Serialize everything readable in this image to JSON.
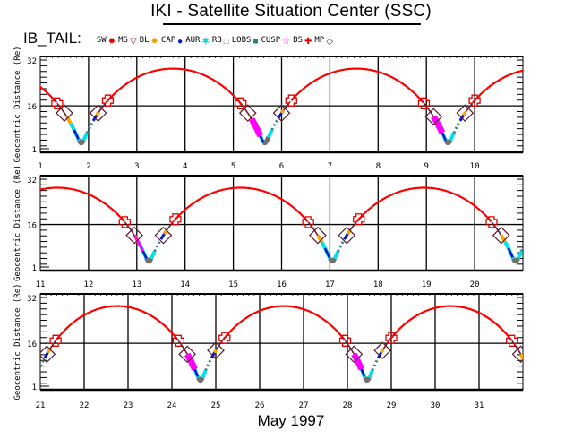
{
  "title": "IKI - Satellite Situation Center (SSC)",
  "legend": {
    "satellite": "IB_TAIL:",
    "items": [
      {
        "label": "SW",
        "glyph": "✹",
        "color": "#e00000",
        "icon": "sw-sun-icon"
      },
      {
        "label": "MS",
        "glyph": "▽",
        "color": "#6b1c2e",
        "icon": "ms-triangle-icon"
      },
      {
        "label": "BL",
        "glyph": "✹",
        "color": "#f0a000",
        "icon": "bl-sun-icon"
      },
      {
        "label": "CAP",
        "glyph": "●",
        "color": "#0018c8",
        "icon": "cap-dot-icon"
      },
      {
        "label": "AUR",
        "glyph": "✱",
        "color": "#00d8e0",
        "icon": "aur-star-icon"
      },
      {
        "label": "RB",
        "glyph": "□",
        "color": "#707070",
        "icon": "rb-square-icon"
      },
      {
        "label": "LOBS",
        "glyph": "■",
        "color": "#2a8080",
        "icon": "lobs-square-icon"
      },
      {
        "label": "CUSP",
        "glyph": "☆",
        "color": "#ff00ff",
        "icon": "cusp-star-icon"
      },
      {
        "label": "BS",
        "glyph": "✚",
        "color": "#e00000",
        "icon": "bs-cross-icon"
      },
      {
        "label": "MP",
        "glyph": "◇",
        "color": "#5a1a2a",
        "icon": "mp-diamond-icon"
      }
    ]
  },
  "colors": {
    "track": "#ff0000",
    "bl": "#6b1c2e",
    "cap": "#ffa500",
    "aur": "#0018c8",
    "rb": "#00e0e8",
    "lobs": "#707070",
    "cusp_teal": "#2a8080",
    "cusp_mag": "#ff00ff",
    "bs": "#e00000",
    "mp": "#5a1a2a",
    "axis": "#000000"
  },
  "chart_data": {
    "type": "line",
    "title": "IKI - Satellite Situation Center (SSC)",
    "satellite": "IB_TAIL",
    "xlabel": "May   1997",
    "ylabel": "Geocentric Distance (Re)",
    "ylim": [
      1,
      32
    ],
    "yticks": [
      1,
      16,
      32
    ],
    "grid": true,
    "orbit": {
      "period_days": 3.8,
      "apogee_re": 29,
      "perigee_re": 3,
      "first_perigee_day": 1.85
    },
    "panels": [
      {
        "xlim": [
          1,
          11
        ],
        "xticks": [
          "1",
          "2",
          "3",
          "4",
          "5",
          "6",
          "7",
          "8",
          "9",
          "10"
        ],
        "perigees": [
          1.85,
          5.68,
          9.45
        ],
        "bs_crossings": [
          1.35,
          2.4,
          5.15,
          6.2,
          8.95,
          10.0
        ],
        "mp_crossings": [
          1.5,
          2.2,
          5.3,
          6.0,
          9.15,
          9.8
        ]
      },
      {
        "xlim": [
          11,
          21
        ],
        "xticks": [
          "11",
          "12",
          "13",
          "14",
          "15",
          "16",
          "17",
          "18",
          "19",
          "20"
        ],
        "perigees": [
          13.25,
          17.05,
          20.85
        ],
        "bs_crossings": [
          12.75,
          13.8,
          16.55,
          17.6,
          20.35
        ],
        "mp_crossings": [
          12.95,
          13.55,
          16.75,
          17.35,
          20.55
        ]
      },
      {
        "xlim": [
          21,
          32
        ],
        "xticks": [
          "21",
          "22",
          "23",
          "24",
          "25",
          "26",
          "27",
          "28",
          "29",
          "30",
          "31"
        ],
        "perigees": [
          20.85,
          24.65,
          28.45,
          32.25
        ],
        "bs_crossings": [
          21.35,
          24.15,
          25.2,
          27.95,
          29.0,
          31.75
        ],
        "mp_crossings": [
          21.15,
          24.35,
          25.0,
          28.15,
          28.8,
          31.95
        ]
      }
    ]
  },
  "month_label": "May   1997"
}
